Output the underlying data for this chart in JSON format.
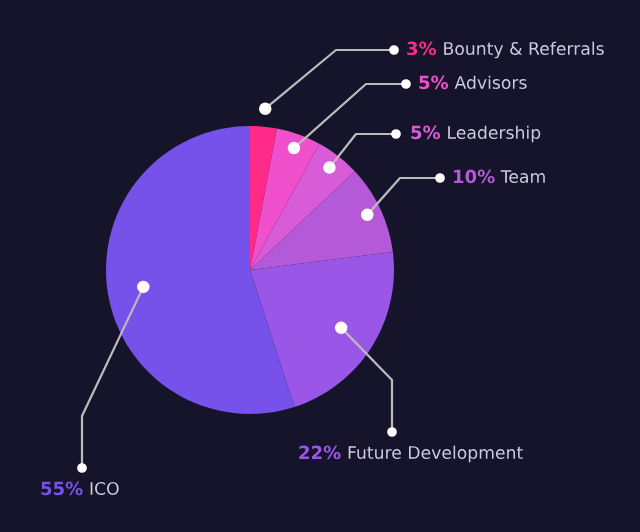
{
  "chart_data": {
    "type": "pie",
    "categories": [
      "Bounty & Referrals",
      "Advisors",
      "Leadership",
      "Team",
      "Future Development",
      "ICO"
    ],
    "values": [
      3,
      5,
      5,
      10,
      22,
      55
    ],
    "value_labels": [
      "3%",
      "5%",
      "5%",
      "10%",
      "22%",
      "55%"
    ],
    "colors": [
      "#ff2a8a",
      "#f050cc",
      "#d85cd8",
      "#b45ad8",
      "#9a56e6",
      "#7752ea"
    ],
    "legend": false
  }
}
